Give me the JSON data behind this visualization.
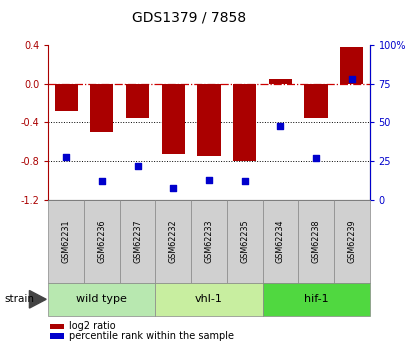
{
  "title": "GDS1379 / 7858",
  "samples": [
    "GSM62231",
    "GSM62236",
    "GSM62237",
    "GSM62232",
    "GSM62233",
    "GSM62235",
    "GSM62234",
    "GSM62238",
    "GSM62239"
  ],
  "log2_ratio": [
    -0.28,
    -0.5,
    -0.35,
    -0.72,
    -0.75,
    -0.8,
    0.05,
    -0.35,
    0.38
  ],
  "percentile_rank": [
    28,
    12,
    22,
    8,
    13,
    12,
    48,
    27,
    78
  ],
  "groups": [
    {
      "label": "wild type",
      "start": 0,
      "end": 3,
      "color": "#b8e8b0"
    },
    {
      "label": "vhl-1",
      "start": 3,
      "end": 6,
      "color": "#c8eea0"
    },
    {
      "label": "hif-1",
      "start": 6,
      "end": 9,
      "color": "#50d840"
    }
  ],
  "ylim_left": [
    -1.2,
    0.4
  ],
  "ylim_right": [
    0,
    100
  ],
  "bar_color": "#aa0000",
  "dot_color": "#0000cc",
  "hline_color": "#cc0000",
  "dotline_color": "#000000",
  "bg_color": "#ffffff",
  "plot_bg": "#ffffff",
  "sample_box_color": "#d0d0d0",
  "left_yticks": [
    -1.2,
    -0.8,
    -0.4,
    0.0,
    0.4
  ],
  "right_yticks": [
    0,
    25,
    50,
    75,
    100
  ],
  "right_yticklabels": [
    "0",
    "25",
    "50",
    "75",
    "100%"
  ]
}
